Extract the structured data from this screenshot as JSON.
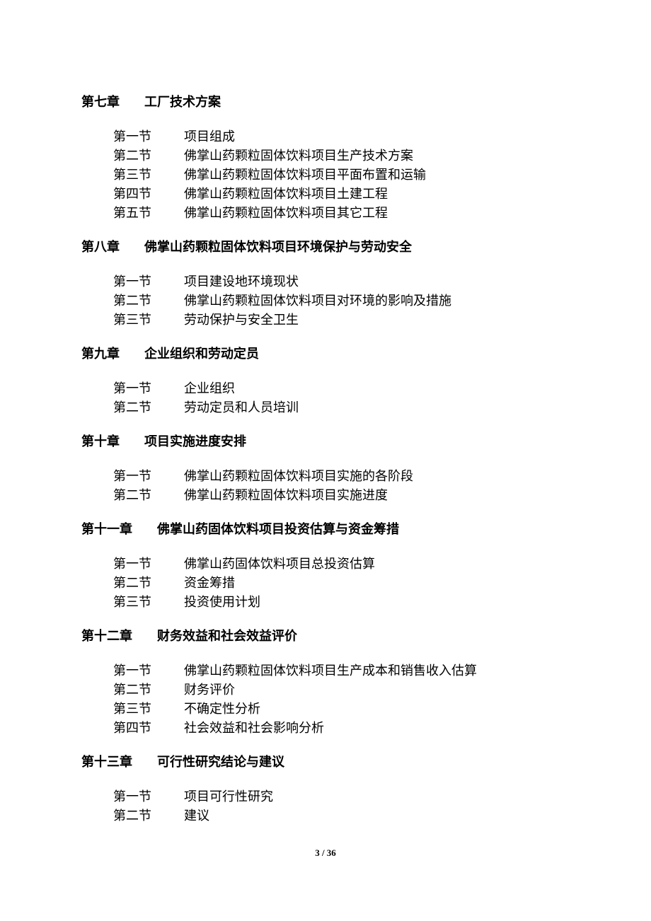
{
  "chapters": [
    {
      "number": "第七章",
      "title": "工厂技术方案",
      "sections": [
        {
          "num": "第一节",
          "title": "项目组成"
        },
        {
          "num": "第二节",
          "title": "佛掌山药颗粒固体饮料项目生产技术方案"
        },
        {
          "num": "第三节",
          "title": "佛掌山药颗粒固体饮料项目平面布置和运输"
        },
        {
          "num": "第四节",
          "title": "佛掌山药颗粒固体饮料项目土建工程"
        },
        {
          "num": "第五节",
          "title": "佛掌山药颗粒固体饮料项目其它工程"
        }
      ]
    },
    {
      "number": "第八章",
      "title": "佛掌山药颗粒固体饮料项目环境保护与劳动安全",
      "sections": [
        {
          "num": "第一节",
          "title": "项目建设地环境现状"
        },
        {
          "num": "第二节",
          "title": "佛掌山药颗粒固体饮料项目对环境的影响及措施"
        },
        {
          "num": "第三节",
          "title": "劳动保护与安全卫生"
        }
      ]
    },
    {
      "number": "第九章",
      "title": "企业组织和劳动定员",
      "sections": [
        {
          "num": "第一节",
          "title": "企业组织"
        },
        {
          "num": "第二节",
          "title": "劳动定员和人员培训"
        }
      ]
    },
    {
      "number": "第十章",
      "title": "项目实施进度安排",
      "sections": [
        {
          "num": "第一节",
          "title": "佛掌山药颗粒固体饮料项目实施的各阶段"
        },
        {
          "num": "第二节",
          "title": "佛掌山药颗粒固体饮料项目实施进度"
        }
      ]
    },
    {
      "number": "第十一章",
      "title": "佛掌山药固体饮料项目投资估算与资金筹措",
      "sections": [
        {
          "num": "第一节",
          "title": "佛掌山药固体饮料项目总投资估算"
        },
        {
          "num": "第二节",
          "title": "资金筹措"
        },
        {
          "num": "第三节",
          "title": "投资使用计划"
        }
      ]
    },
    {
      "number": "第十二章",
      "title": "财务效益和社会效益评价",
      "sections": [
        {
          "num": "第一节",
          "title": "佛掌山药颗粒固体饮料项目生产成本和销售收入估算"
        },
        {
          "num": "第二节",
          "title": "财务评价"
        },
        {
          "num": "第三节",
          "title": "不确定性分析"
        },
        {
          "num": "第四节",
          "title": "社会效益和社会影响分析"
        }
      ]
    },
    {
      "number": "第十三章",
      "title": "可行性研究结论与建议",
      "sections": [
        {
          "num": "第一节",
          "title": "项目可行性研究"
        },
        {
          "num": "第二节",
          "title": "建议"
        }
      ]
    }
  ],
  "page_number": "3 / 36",
  "colors": {
    "background": "#ffffff",
    "text": "#000000"
  },
  "typography": {
    "font_family": "SimSun",
    "body_fontsize": 18,
    "page_number_fontsize": 13
  }
}
